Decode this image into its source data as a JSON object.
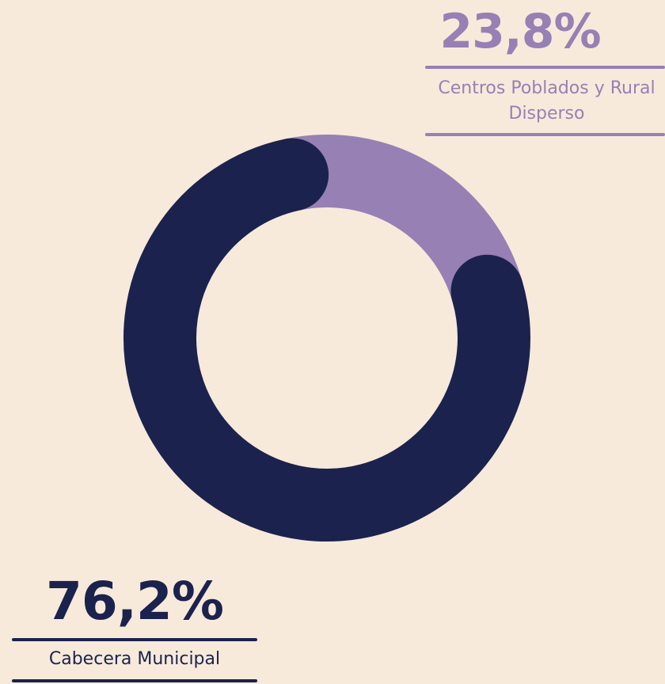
{
  "chart_data": {
    "type": "donut",
    "categories": [
      "Cabecera Municipal",
      "Centros Poblados y Rural Disperso"
    ],
    "values": [
      76.2,
      23.8
    ],
    "value_labels": [
      "76,2%",
      "23,8%"
    ],
    "colors": [
      "#1b224d",
      "#9780b4"
    ]
  }
}
